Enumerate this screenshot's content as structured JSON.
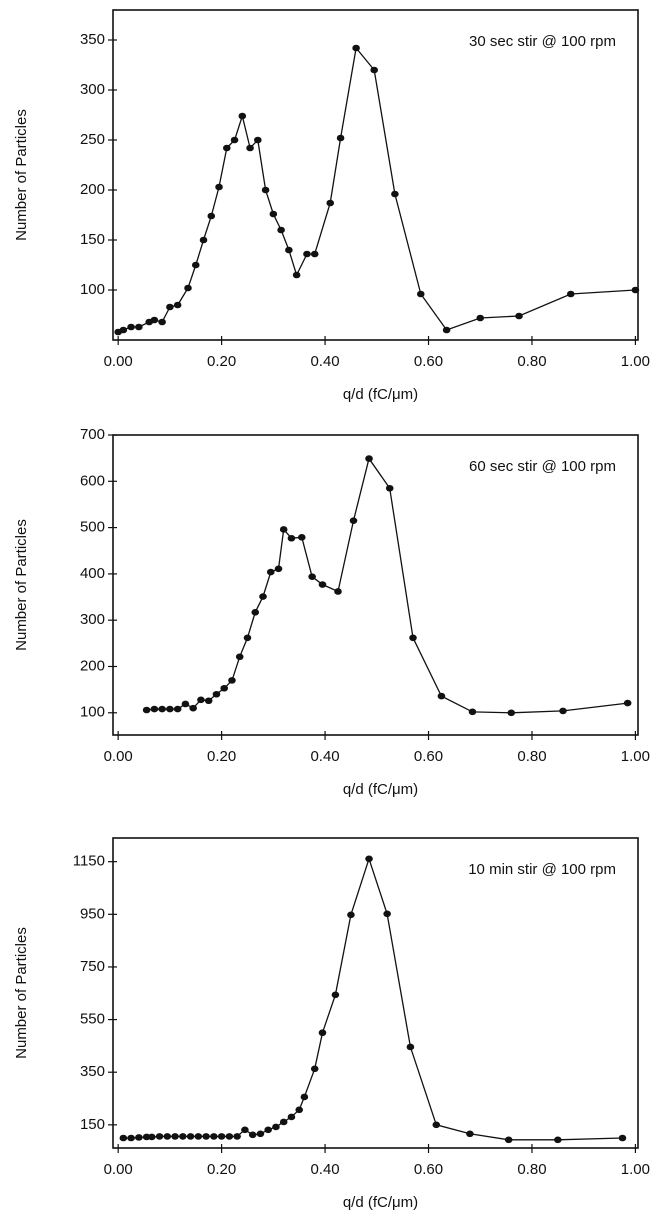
{
  "chart_data": [
    {
      "type": "line",
      "annotation": "30 sec stir @ 100 rpm",
      "xlabel": "q/d  (fC/μm)",
      "ylabel": "Number of Particles",
      "color": "#111111",
      "x": [
        0.0,
        0.01,
        0.025,
        0.04,
        0.06,
        0.07,
        0.085,
        0.1,
        0.115,
        0.135,
        0.15,
        0.165,
        0.18,
        0.195,
        0.21,
        0.225,
        0.24,
        0.255,
        0.27,
        0.285,
        0.3,
        0.315,
        0.33,
        0.345,
        0.365,
        0.38,
        0.41,
        0.43,
        0.46,
        0.495,
        0.535,
        0.585,
        0.635,
        0.7,
        0.775,
        0.875,
        1.0
      ],
      "values": [
        58,
        60,
        63,
        63,
        68,
        70,
        68,
        83,
        85,
        102,
        125,
        150,
        174,
        203,
        242,
        250,
        274,
        242,
        250,
        200,
        176,
        160,
        140,
        115,
        136,
        136,
        187,
        252,
        342,
        320,
        196,
        96,
        60,
        72,
        74,
        96,
        100
      ],
      "xlim": [
        -0.01,
        1.005
      ],
      "ylim": [
        50,
        380
      ],
      "xticks": [
        {
          "value": 0,
          "label": "0.00"
        },
        {
          "value": 0.2,
          "label": "0.20"
        },
        {
          "value": 0.4,
          "label": "0.40"
        },
        {
          "value": 0.6,
          "label": "0.60"
        },
        {
          "value": 0.8,
          "label": "0.80"
        },
        {
          "value": 1.0,
          "label": "1.00"
        }
      ],
      "yticks": [
        100,
        150,
        200,
        250,
        300,
        350
      ]
    },
    {
      "type": "line",
      "annotation": "60 sec stir @ 100 rpm",
      "xlabel": "q/d  (fC/μm)",
      "ylabel": "Number of Particles",
      "color": "#111111",
      "x": [
        0.055,
        0.07,
        0.085,
        0.1,
        0.115,
        0.13,
        0.145,
        0.16,
        0.175,
        0.19,
        0.205,
        0.22,
        0.235,
        0.25,
        0.265,
        0.28,
        0.295,
        0.31,
        0.32,
        0.335,
        0.355,
        0.375,
        0.395,
        0.425,
        0.455,
        0.485,
        0.525,
        0.57,
        0.625,
        0.685,
        0.76,
        0.86,
        0.985
      ],
      "values": [
        106,
        108,
        108,
        108,
        108,
        119,
        110,
        128,
        126,
        140,
        153,
        170,
        221,
        262,
        317,
        351,
        404,
        411,
        496,
        477,
        479,
        394,
        377,
        362,
        515,
        649,
        585,
        262,
        136,
        102,
        100,
        104,
        121
      ],
      "xlim": [
        -0.01,
        1.005
      ],
      "ylim": [
        52,
        700
      ],
      "xticks": [
        {
          "value": 0,
          "label": "0.00"
        },
        {
          "value": 0.2,
          "label": "0.20"
        },
        {
          "value": 0.4,
          "label": "0.40"
        },
        {
          "value": 0.6,
          "label": "0.60"
        },
        {
          "value": 0.8,
          "label": "0.80"
        },
        {
          "value": 1.0,
          "label": "1.00"
        }
      ],
      "yticks": [
        100,
        200,
        300,
        400,
        500,
        600,
        700
      ]
    },
    {
      "type": "line",
      "annotation": "10 min stir @ 100 rpm",
      "xlabel": "q/d  (fC/μm)",
      "ylabel": "Number of Particles",
      "color": "#111111",
      "x": [
        0.01,
        0.025,
        0.04,
        0.055,
        0.065,
        0.08,
        0.095,
        0.11,
        0.125,
        0.14,
        0.155,
        0.17,
        0.185,
        0.2,
        0.215,
        0.23,
        0.245,
        0.26,
        0.275,
        0.29,
        0.305,
        0.32,
        0.335,
        0.35,
        0.36,
        0.38,
        0.395,
        0.42,
        0.45,
        0.485,
        0.52,
        0.565,
        0.615,
        0.68,
        0.755,
        0.85,
        0.975
      ],
      "values": [
        100,
        100,
        102,
        104,
        104,
        106,
        106,
        106,
        106,
        106,
        106,
        106,
        106,
        106,
        106,
        106,
        131,
        112,
        116,
        131,
        142,
        161,
        180,
        207,
        256,
        363,
        500,
        644,
        948,
        1161,
        952,
        446,
        150,
        116,
        93,
        93,
        100
      ],
      "xlim": [
        -0.01,
        1.005
      ],
      "ylim": [
        62,
        1240
      ],
      "xticks": [
        {
          "value": 0,
          "label": "0.00"
        },
        {
          "value": 0.2,
          "label": "0.20"
        },
        {
          "value": 0.4,
          "label": "0.40"
        },
        {
          "value": 0.6,
          "label": "0.60"
        },
        {
          "value": 0.8,
          "label": "0.80"
        },
        {
          "value": 1.0,
          "label": "1.00"
        }
      ],
      "yticks": [
        150,
        350,
        550,
        750,
        950,
        1150
      ]
    }
  ]
}
